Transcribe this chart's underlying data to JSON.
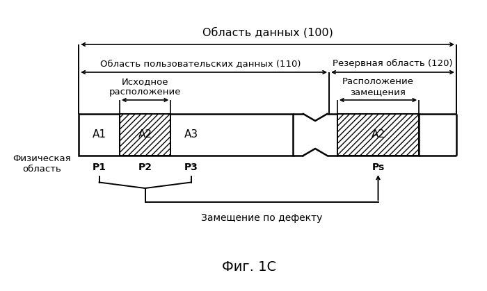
{
  "title_top": "Область данных (100)",
  "label_user_area": "Область пользовательских данных (110)",
  "label_reserve_area": "Резервная область (120)",
  "label_source_location": "Исходное\nрасположение",
  "label_replacement_location": "Расположение\nзамещения",
  "label_physical_area": "Физическая\nобласть",
  "label_defect_replacement": "Замещение по дефекту",
  "label_fig": "Фиг. 1С",
  "label_A1": "A1",
  "label_A2_left": "A2",
  "label_A3": "A3",
  "label_A2_right": "A2",
  "label_P1": "P1",
  "label_P2": "P2",
  "label_P3": "P3",
  "label_Ps": "Ps",
  "bg_color": "#ffffff",
  "text_color": "#000000"
}
